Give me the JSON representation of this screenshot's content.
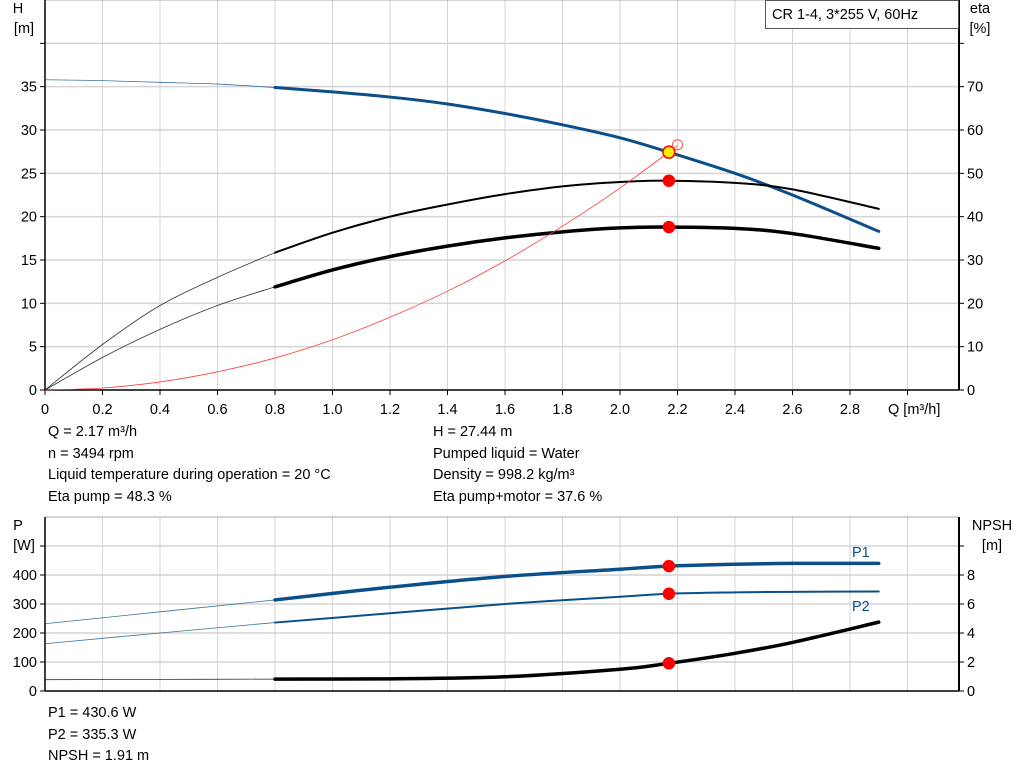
{
  "chart_data": [
    {
      "type": "line",
      "legend_box": "CR 1-4, 3*255 V, 60Hz",
      "xlabel": "Q [m³/h]",
      "ylabel_left": [
        "H",
        "[m]"
      ],
      "ylabel_right": [
        "eta",
        "[%]"
      ],
      "xlim": [
        0,
        3.2
      ],
      "ylim_left": [
        0,
        45
      ],
      "ylim_right": [
        0,
        90
      ],
      "x_ticks": [
        "0",
        "0.2",
        "0.4",
        "0.6",
        "0.8",
        "1.0",
        "1.2",
        "1.4",
        "1.6",
        "1.8",
        "2.0",
        "2.2",
        "2.4",
        "2.6",
        "2.8"
      ],
      "y_ticks_left": [
        "0",
        "5",
        "10",
        "15",
        "20",
        "25",
        "30",
        "35"
      ],
      "y_ticks_right": [
        "0",
        "10",
        "20",
        "30",
        "40",
        "50",
        "60",
        "70"
      ],
      "grid": true,
      "series": [
        {
          "id": "head",
          "axis": "left",
          "color": "#0b4f8a",
          "thick_from": 0.8,
          "x": [
            0,
            0.2,
            0.4,
            0.6,
            0.8,
            1.0,
            1.2,
            1.4,
            1.6,
            1.8,
            2.0,
            2.17,
            2.4,
            2.6,
            2.9
          ],
          "y": [
            35.8,
            35.7,
            35.5,
            35.3,
            34.9,
            34.4,
            33.8,
            33.0,
            31.9,
            30.6,
            29.1,
            27.44,
            25.0,
            22.5,
            18.3
          ]
        },
        {
          "id": "eta-pump",
          "axis": "right",
          "color": "#000000",
          "thick_from": 0.8,
          "thick_width": 2,
          "x": [
            0,
            0.2,
            0.4,
            0.6,
            0.8,
            1.0,
            1.2,
            1.4,
            1.6,
            1.8,
            2.0,
            2.17,
            2.4,
            2.6,
            2.9
          ],
          "y": [
            0,
            10.5,
            19.5,
            26,
            31.7,
            36.3,
            40,
            42.8,
            45.2,
            47,
            48,
            48.3,
            47.8,
            46.3,
            41.8
          ]
        },
        {
          "id": "eta-pump-motor",
          "axis": "right",
          "color": "#000000",
          "thick_from": 0.8,
          "thick_width": 3.5,
          "x": [
            0,
            0.2,
            0.4,
            0.6,
            0.8,
            1.0,
            1.2,
            1.4,
            1.6,
            1.8,
            2.0,
            2.17,
            2.4,
            2.6,
            2.9
          ],
          "y": [
            0,
            7.5,
            14,
            19.5,
            23.8,
            27.7,
            30.8,
            33.2,
            35.1,
            36.5,
            37.4,
            37.6,
            37.3,
            36.1,
            32.7
          ]
        },
        {
          "id": "system-curve",
          "axis": "left",
          "color": "#ff3b3b",
          "x": [
            0,
            0.2,
            0.4,
            0.6,
            0.8,
            1.0,
            1.2,
            1.4,
            1.6,
            1.8,
            2.0,
            2.2
          ],
          "y": [
            0,
            0.23,
            0.93,
            2.1,
            3.7,
            5.8,
            8.4,
            11.4,
            14.9,
            18.9,
            23.3,
            28.2
          ]
        }
      ],
      "points": [
        {
          "id": "duty-point",
          "axis": "left",
          "x": 2.17,
          "y": 27.44,
          "fill": "#ffee00",
          "stroke": "#ff0000"
        },
        {
          "id": "requested-point",
          "axis": "left",
          "x": 2.2,
          "y": 28.3,
          "fill": "none",
          "stroke": "#ff5050"
        },
        {
          "id": "eta-pump-point",
          "axis": "right",
          "x": 2.17,
          "y": 48.3,
          "fill": "#ff0000",
          "stroke": "#ff0000"
        },
        {
          "id": "eta-total-point",
          "axis": "right",
          "x": 2.17,
          "y": 37.6,
          "fill": "#ff0000",
          "stroke": "#ff0000"
        }
      ]
    },
    {
      "type": "line",
      "ylabel_left": [
        "P",
        "[W]"
      ],
      "ylabel_right": [
        "NPSH",
        "[m]"
      ],
      "xlim": [
        0,
        3.2
      ],
      "ylim_left": [
        0,
        600
      ],
      "ylim_right": [
        0,
        12
      ],
      "y_ticks_left": [
        "0",
        "100",
        "200",
        "300",
        "400"
      ],
      "y_ticks_right": [
        "0",
        "2",
        "4",
        "6",
        "8"
      ],
      "grid": true,
      "series": [
        {
          "id": "P1",
          "name": "P1",
          "axis": "left",
          "color": "#0b4f8a",
          "thick_from": 0.8,
          "thick_width": 3.5,
          "x": [
            0,
            0.4,
            0.8,
            1.2,
            1.6,
            2.0,
            2.17,
            2.4,
            2.6,
            2.9
          ],
          "y": [
            232,
            273,
            314,
            358,
            395,
            420,
            430.6,
            437,
            440,
            440
          ]
        },
        {
          "id": "P2",
          "name": "P2",
          "axis": "left",
          "color": "#0b4f8a",
          "thick_from": 0.8,
          "thick_width": 2,
          "x": [
            0,
            0.4,
            0.8,
            1.2,
            1.6,
            2.0,
            2.17,
            2.4,
            2.6,
            2.9
          ],
          "y": [
            163,
            200,
            236,
            268,
            300,
            325,
            335.3,
            340,
            342,
            343
          ]
        },
        {
          "id": "NPSH",
          "axis": "right",
          "color": "#000000",
          "thick_from": 0.8,
          "thick_width": 3.5,
          "x": [
            0,
            0.4,
            0.8,
            1.2,
            1.6,
            2.0,
            2.17,
            2.4,
            2.6,
            2.9
          ],
          "y": [
            0.78,
            0.8,
            0.82,
            0.84,
            0.98,
            1.5,
            1.91,
            2.6,
            3.35,
            4.75
          ]
        }
      ],
      "points": [
        {
          "id": "p1-point",
          "axis": "left",
          "x": 2.17,
          "y": 430.6,
          "fill": "#ff0000",
          "stroke": "#ff0000"
        },
        {
          "id": "p2-point",
          "axis": "left",
          "x": 2.17,
          "y": 335.3,
          "fill": "#ff0000",
          "stroke": "#ff0000"
        },
        {
          "id": "npsh-point",
          "axis": "right",
          "x": 2.17,
          "y": 1.91,
          "fill": "#ff0000",
          "stroke": "#ff0000"
        }
      ]
    }
  ],
  "info_top": {
    "left": [
      "Q = 2.17 m³/h",
      "n = 3494 rpm",
      "Liquid temperature during operation = 20 °C",
      "Eta pump = 48.3 %"
    ],
    "right": [
      "H = 27.44 m",
      "Pumped liquid = Water",
      "Density = 998.2 kg/m³",
      "Eta pump+motor = 37.6 %"
    ]
  },
  "info_bottom": [
    "P1 = 430.6 W",
    "P2 = 335.3 W",
    "NPSH = 1.91 m"
  ]
}
